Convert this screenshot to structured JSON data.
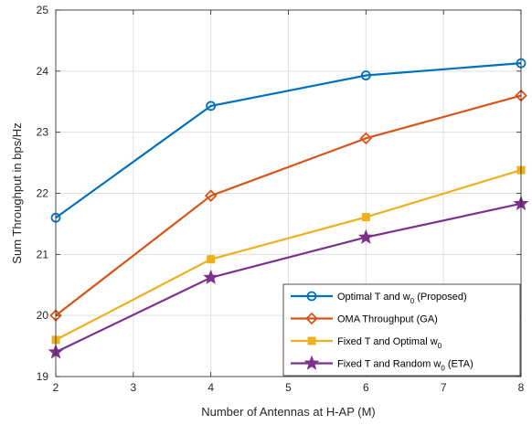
{
  "chart_data": {
    "type": "line",
    "xlabel": "Number of Antennas at H-AP (M)",
    "ylabel": "Sum Throughput in bps/Hz",
    "xlim": [
      2,
      8
    ],
    "ylim": [
      19,
      25
    ],
    "x_ticks": [
      "2",
      "3",
      "4",
      "5",
      "6",
      "7",
      "8"
    ],
    "y_ticks": [
      "19",
      "20",
      "21",
      "22",
      "23",
      "24",
      "25"
    ],
    "grid": true,
    "legend_position": "bottom-right",
    "x": [
      2,
      4,
      6,
      8
    ],
    "series": [
      {
        "name_parts": [
          "Optimal T and w",
          "0",
          " (Proposed)"
        ],
        "values": [
          21.6,
          23.43,
          23.93,
          24.13
        ],
        "color": "#0072BD",
        "marker": "circle"
      },
      {
        "name_parts": [
          "OMA Throughput (GA)"
        ],
        "values": [
          20.0,
          21.96,
          22.9,
          23.6
        ],
        "color": "#D95319",
        "marker": "diamond"
      },
      {
        "name_parts": [
          "Fixed T and Optimal w",
          "0",
          ""
        ],
        "values": [
          19.6,
          20.92,
          21.61,
          22.38
        ],
        "color": "#EDB120",
        "marker": "square"
      },
      {
        "name_parts": [
          "Fixed T and Random w",
          "0",
          " (ETA)"
        ],
        "values": [
          19.4,
          20.62,
          21.28,
          21.83
        ],
        "color": "#7E2F8E",
        "marker": "star"
      }
    ]
  }
}
